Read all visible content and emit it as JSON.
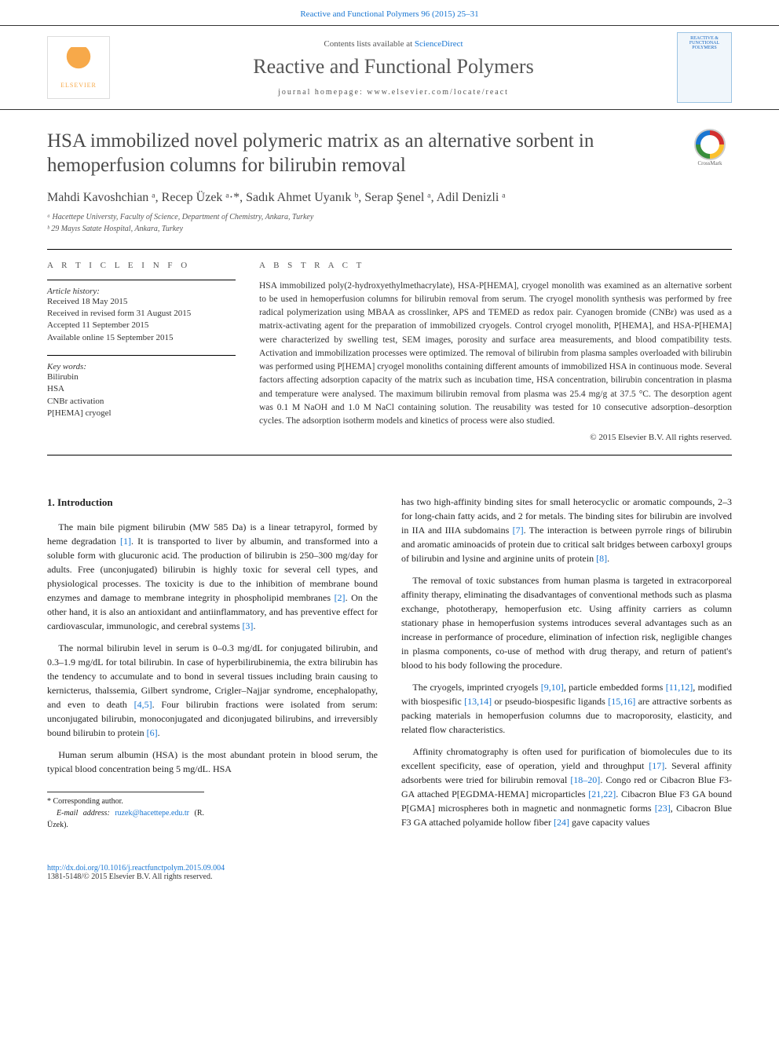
{
  "topbar_link": "Reactive and Functional Polymers 96 (2015) 25–31",
  "header": {
    "contents_prefix": "Contents lists available at ",
    "contents_link": "ScienceDirect",
    "journal_name": "Reactive and Functional Polymers",
    "homepage_prefix": "journal homepage: ",
    "homepage_url": "www.elsevier.com/locate/react",
    "publisher_label": "ELSEVIER",
    "cover_text": "REACTIVE & FUNCTIONAL POLYMERS"
  },
  "crossmark_label": "CrossMark",
  "title": "HSA immobilized novel polymeric matrix as an alternative sorbent in hemoperfusion columns for bilirubin removal",
  "authors_html": "Mahdi Kavoshchian ᵃ, Recep Üzek ᵃ·*, Sadık Ahmet Uyanık ᵇ, Serap Şenel ᵃ, Adil Denizli ᵃ",
  "affiliations": {
    "a": "ᵃ Hacettepe Universty, Faculty of Science, Department of Chemistry, Ankara, Turkey",
    "b": "ᵇ 29 Mayıs Satate Hospital, Ankara, Turkey"
  },
  "info": {
    "heading": "A R T I C L E   I N F O",
    "history_label": "Article history:",
    "history": [
      "Received 18 May 2015",
      "Received in revised form 31 August 2015",
      "Accepted 11 September 2015",
      "Available online 15 September 2015"
    ],
    "keywords_label": "Key words:",
    "keywords": [
      "Bilirubin",
      "HSA",
      "CNBr activation",
      "P[HEMA] cryogel"
    ]
  },
  "abstract": {
    "heading": "A B S T R A C T",
    "text": "HSA immobilized poly(2-hydroxyethylmethacrylate), HSA-P[HEMA], cryogel monolith was examined as an alternative sorbent to be used in hemoperfusion columns for bilirubin removal from serum. The cryogel monolith synthesis was performed by free radical polymerization using MBAA as crosslinker, APS and TEMED as redox pair. Cyanogen bromide (CNBr) was used as a matrix-activating agent for the preparation of immobilized cryogels. Control cryogel monolith, P[HEMA], and HSA-P[HEMA] were characterized by swelling test, SEM images, porosity and surface area measurements, and blood compatibility tests. Activation and immobilization processes were optimized. The removal of bilirubin from plasma samples overloaded with bilirubin was performed using P[HEMA] cryogel monoliths containing different amounts of immobilized HSA in continuous mode. Several factors affecting adsorption capacity of the matrix such as incubation time, HSA concentration, bilirubin concentration in plasma and temperature were analysed. The maximum bilirubin removal from plasma was 25.4 mg/g at 37.5 °C. The desorption agent was 0.1 M NaOH and 1.0 M NaCl containing solution. The reusability was tested for 10 consecutive adsorption–desorption cycles. The adsorption isotherm models and kinetics of process were also studied.",
    "copyright": "© 2015 Elsevier B.V. All rights reserved."
  },
  "body": {
    "section_heading": "1. Introduction",
    "left": {
      "p1_a": "The main bile pigment bilirubin (MW 585 Da) is a linear tetrapyrol, formed by heme degradation ",
      "p1_c1": "[1]",
      "p1_b": ". It is transported to liver by albumin, and transformed into a soluble form with glucuronic acid. The production of bilirubin is 250–300 mg/day for adults. Free (unconjugated) bilirubin is highly toxic for several cell types, and physiological processes. The toxicity is due to the inhibition of membrane bound enzymes and damage to membrane integrity in phospholipid membranes ",
      "p1_c2": "[2]",
      "p1_c": ". On the other hand, it is also an antioxidant and antiinflammatory, and has preventive effect for cardiovascular, immunologic, and cerebral systems ",
      "p1_c3": "[3]",
      "p1_d": ".",
      "p2_a": "The normal bilirubin level in serum is 0–0.3 mg/dL for conjugated bilirubin, and 0.3–1.9 mg/dL for total bilirubin. In case of hyperbilirubinemia, the extra bilirubin has the tendency to accumulate and to bond in several tissues including brain causing to kernicterus, thalssemia, Gilbert syndrome, Crigler–Najjar syndrome, encephalopathy, and even to death ",
      "p2_c1": "[4,5]",
      "p2_b": ". Four bilirubin fractions were isolated from serum: unconjugated bilirubin, monoconjugated and diconjugated bilirubins, and irreversibly bound bilirubin to protein ",
      "p2_c2": "[6]",
      "p2_c": ".",
      "p3": "Human serum albumin (HSA) is the most abundant protein in blood serum, the typical blood concentration being 5 mg/dL. HSA"
    },
    "right": {
      "p1_a": "has two high-affinity binding sites for small heterocyclic or aromatic compounds, 2–3 for long-chain fatty acids, and 2 for metals. The binding sites for bilirubin are involved in IIA and IIIA subdomains ",
      "p1_c1": "[7]",
      "p1_b": ". The interaction is between pyrrole rings of bilirubin and aromatic aminoacids of protein due to critical salt bridges between carboxyl groups of bilirubin and lysine and arginine units of protein ",
      "p1_c2": "[8]",
      "p1_c": ".",
      "p2": "The removal of toxic substances from human plasma is targeted in extracorporeal affinity therapy, eliminating the disadvantages of conventional methods such as plasma exchange, phototherapy, hemoperfusion etc. Using affinity carriers as column stationary phase in hemoperfusion systems introduces several advantages such as an increase in performance of procedure, elimination of infection risk, negligible changes in plasma components, co-use of method with drug therapy, and return of patient's blood to his body following the procedure.",
      "p3_a": "The cryogels, imprinted cryogels ",
      "p3_c1": "[9,10]",
      "p3_b": ", particle embedded forms ",
      "p3_c2": "[11,12]",
      "p3_c": ", modified with biospesific ",
      "p3_c3": "[13,14]",
      "p3_d": " or pseudo-biospesific ligands ",
      "p3_c4": "[15,16]",
      "p3_e": " are attractive sorbents as packing materials in hemoperfusion columns due to macroporosity, elasticity, and related flow characteristics.",
      "p4_a": "Affinity chromatography is often used for purification of biomolecules due to its excellent specificity, ease of operation, yield and throughput ",
      "p4_c1": "[17]",
      "p4_b": ". Several affinity adsorbents were tried for bilirubin removal ",
      "p4_c2": "[18–20]",
      "p4_c": ". Congo red or Cibacron Blue F3-GA attached P[EGDMA-HEMA] microparticles ",
      "p4_c3": "[21,22]",
      "p4_d": ". Cibacron Blue F3 GA bound P[GMA] microspheres both in magnetic and nonmagnetic forms ",
      "p4_c4": "[23]",
      "p4_e": ", Cibacron Blue F3 GA attached polyamide hollow fiber ",
      "p4_c5": "[24]",
      "p4_f": " gave capacity values"
    }
  },
  "footer": {
    "corr_label": "* Corresponding author.",
    "email_label": "E-mail address: ",
    "email": "ruzek@hacettepe.edu.tr",
    "email_suffix": " (R. Üzek).",
    "doi": "http://dx.doi.org/10.1016/j.reactfunctpolym.2015.09.004",
    "issn_line": "1381-5148/© 2015 Elsevier B.V. All rights reserved."
  },
  "colors": {
    "link": "#1976d2",
    "text": "#333333",
    "heading": "#4a4a4a"
  }
}
